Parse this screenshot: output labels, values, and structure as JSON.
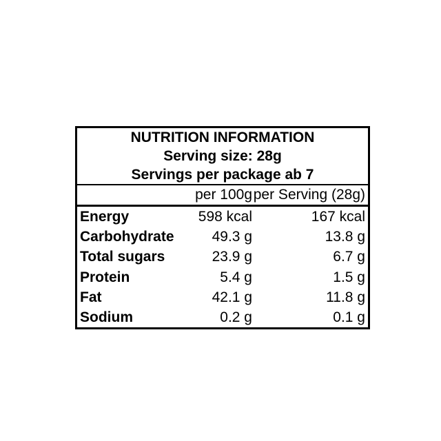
{
  "colors": {
    "background": "#ffffff",
    "text": "#000000",
    "border": "#000000"
  },
  "nutrition_label": {
    "title": "NUTRITION INFORMATION",
    "serving_size_line": "Serving size: 28g",
    "servings_per_package_line": "Servings per package ab 7",
    "column_headers": {
      "blank": "",
      "per_100g": "per 100g",
      "per_serving": "per Serving (28g)"
    },
    "rows": [
      {
        "label": "Energy",
        "per_100g": "598 kcal",
        "per_serving": "167 kcal"
      },
      {
        "label": "Carbohydrate",
        "per_100g": "49.3 g",
        "per_serving": "13.8 g"
      },
      {
        "label": "Total sugars",
        "per_100g": "23.9 g",
        "per_serving": "6.7 g"
      },
      {
        "label": "Protein",
        "per_100g": "5.4 g",
        "per_serving": "1.5 g"
      },
      {
        "label": "Fat",
        "per_100g": "42.1 g",
        "per_serving": "11.8 g"
      },
      {
        "label": "Sodium",
        "per_100g": "0.2 g",
        "per_serving": "0.1 g"
      }
    ]
  }
}
